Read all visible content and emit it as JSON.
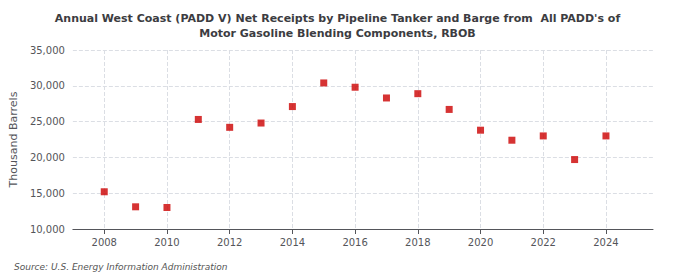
{
  "chart_data": {
    "type": "scatter",
    "title": "Annual West Coast (PADD V) Net Receipts by Pipeline Tanker and Barge from  All PADD's of\nMotor Gasoline Blending Components, RBOB",
    "ylabel": "Thousand Barrels",
    "annotations": [
      "Source: U.S. Energy Information Administration"
    ],
    "x": [
      2008,
      2009,
      2010,
      2011,
      2012,
      2013,
      2014,
      2015,
      2016,
      2017,
      2018,
      2019,
      2020,
      2021,
      2022,
      2023,
      2024
    ],
    "values": [
      15200,
      13100,
      13000,
      25300,
      24200,
      24800,
      27100,
      30400,
      29800,
      28300,
      28900,
      26700,
      23800,
      22400,
      23000,
      19700,
      23000
    ],
    "color": "#cc0000",
    "marker": "square",
    "xlim": [
      2007.0,
      2025.5
    ],
    "xticks": [
      2008,
      2010,
      2012,
      2014,
      2016,
      2018,
      2020,
      2022,
      2024
    ],
    "ylim": [
      10000,
      35000
    ],
    "yticks": [
      {
        "value": 10000,
        "label": "10,000"
      },
      {
        "value": 15000,
        "label": "15,000"
      },
      {
        "value": 20000,
        "label": "20,000"
      },
      {
        "value": 25000,
        "label": "25,000"
      },
      {
        "value": 30000,
        "label": "30,000"
      },
      {
        "value": 35000,
        "label": "35,000"
      }
    ],
    "grid": true
  }
}
